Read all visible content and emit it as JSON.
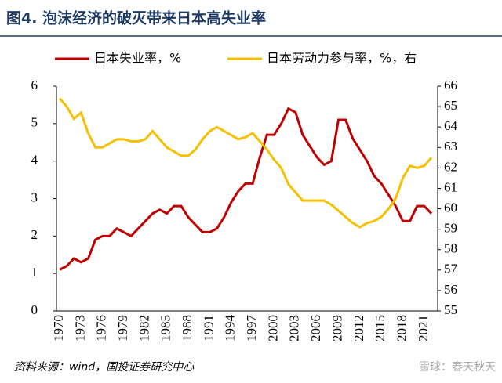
{
  "chart_data": {
    "type": "line",
    "title": "图4. 泡沫经济的破灭带来日本高失业率",
    "source": "资料来源：wind，国投证券研究中心",
    "watermark": "雪球：春天秋天",
    "categories": [
      "1970",
      null,
      null,
      "1973",
      null,
      null,
      "1976",
      null,
      null,
      "1979",
      null,
      null,
      "1982",
      null,
      null,
      "1985",
      null,
      null,
      "1988",
      null,
      null,
      "1991",
      null,
      null,
      "1994",
      null,
      null,
      "1997",
      null,
      null,
      "2000",
      null,
      null,
      "2003",
      null,
      null,
      "2006",
      null,
      null,
      "2009",
      null,
      null,
      "2012",
      null,
      null,
      "2015",
      null,
      null,
      "2018",
      null,
      null,
      "2021",
      null
    ],
    "series": [
      {
        "name": "日本失业率，%",
        "color": "#c00000",
        "values": [
          1.1,
          1.2,
          1.4,
          1.3,
          1.4,
          1.9,
          2.0,
          2.0,
          2.2,
          2.1,
          2.0,
          2.2,
          2.4,
          2.6,
          2.7,
          2.6,
          2.8,
          2.8,
          2.5,
          2.3,
          2.1,
          2.1,
          2.2,
          2.5,
          2.9,
          3.2,
          3.4,
          3.4,
          4.1,
          4.7,
          4.7,
          5.0,
          5.4,
          5.3,
          4.7,
          4.4,
          4.1,
          3.9,
          4.0,
          5.1,
          5.1,
          4.6,
          4.3,
          4.0,
          3.6,
          3.4,
          3.1,
          2.8,
          2.4,
          2.4,
          2.8,
          2.8,
          2.6
        ]
      },
      {
        "name": "日本劳动力参与率，%，右",
        "color": "#f5c000",
        "axis": "y2",
        "values": [
          65.4,
          65.0,
          64.4,
          64.7,
          63.7,
          63.0,
          63.0,
          63.2,
          63.4,
          63.4,
          63.3,
          63.3,
          63.4,
          63.8,
          63.4,
          63.0,
          62.8,
          62.6,
          62.6,
          62.9,
          63.4,
          63.8,
          64.0,
          63.8,
          63.6,
          63.4,
          63.5,
          63.7,
          63.3,
          62.9,
          62.4,
          62.0,
          61.2,
          60.8,
          60.4,
          60.4,
          60.4,
          60.4,
          60.2,
          59.9,
          59.6,
          59.3,
          59.1,
          59.3,
          59.4,
          59.6,
          60.0,
          60.5,
          61.5,
          62.1,
          62.0,
          62.1,
          62.5
        ]
      }
    ],
    "ylim": [
      0,
      6
    ],
    "yticks": [
      0,
      1,
      2,
      3,
      4,
      5,
      6
    ],
    "y2lim": [
      55,
      66
    ],
    "y2ticks": [
      55,
      56,
      57,
      58,
      59,
      60,
      61,
      62,
      63,
      64,
      65,
      66
    ]
  }
}
